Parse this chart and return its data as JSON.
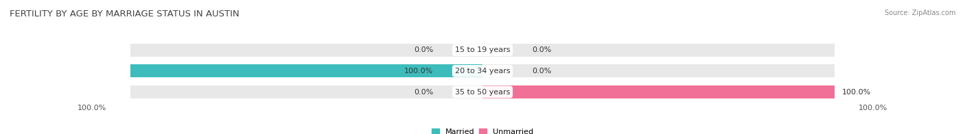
{
  "title": "FERTILITY BY AGE BY MARRIAGE STATUS IN AUSTIN",
  "source": "Source: ZipAtlas.com",
  "categories": [
    "15 to 19 years",
    "20 to 34 years",
    "35 to 50 years"
  ],
  "married_values": [
    0.0,
    100.0,
    0.0
  ],
  "unmarried_values": [
    0.0,
    0.0,
    100.0
  ],
  "married_color": "#3dbcbc",
  "unmarried_color": "#f07098",
  "bar_bg_color": "#e8e8e8",
  "bar_height": 0.62,
  "title_fontsize": 9.5,
  "label_fontsize": 8,
  "source_fontsize": 7,
  "legend_fontsize": 8,
  "axis_label_left": "100.0%",
  "axis_label_right": "100.0%",
  "legend_married": "Married",
  "legend_unmarried": "Unmarried",
  "center_label_color": "#333333",
  "value_label_color": "#333333"
}
